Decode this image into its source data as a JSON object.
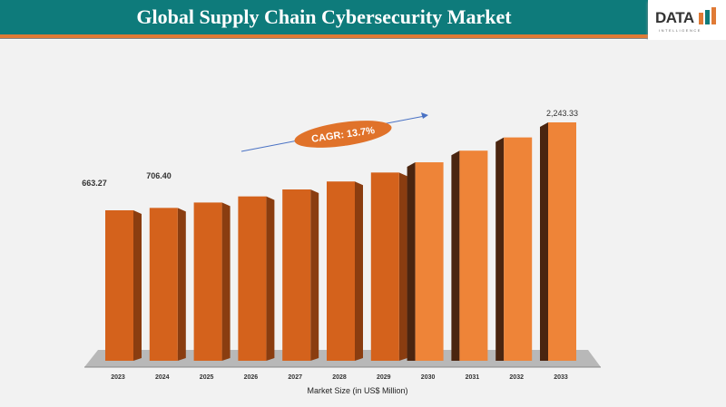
{
  "header": {
    "title": "Global Supply Chain Cybersecurity  Market",
    "logo_text": "DATA",
    "logo_sub": "INTELLIGENCE",
    "brand_color": "#0e7b7b",
    "accent_color": "#e07a35"
  },
  "chart_data": {
    "type": "bar",
    "title": "Global Supply Chain Cybersecurity  Market",
    "xlabel": "Market Size (in US$ Million)",
    "ylabel": "",
    "categories": [
      "2023",
      "2024",
      "2025",
      "2026",
      "2027",
      "2028",
      "2029",
      "2030",
      "2031",
      "2032",
      "2033"
    ],
    "values": [
      663.27,
      706.4,
      803,
      913,
      1038,
      1181,
      1342,
      1526,
      1735,
      1973,
      2243.33
    ],
    "data_labels": {
      "0": "663.27",
      "1": "706.40",
      "10": "2,243.33"
    },
    "annotation": "CAGR: 13.7%",
    "bar_color": "#e0722a",
    "grid": false,
    "legend": "none"
  }
}
